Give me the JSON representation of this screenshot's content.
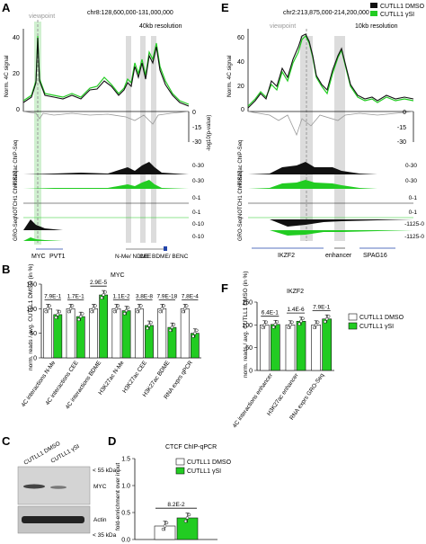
{
  "panels": {
    "A": {
      "letter": "A",
      "viewpoint": "viewpoint",
      "coords": "chr8:128,600,000-131,000,000",
      "resolution": "40kb resolution",
      "ylabel": "Norm. 4C signal",
      "y_ticks": [
        "40",
        "20",
        "0"
      ],
      "p_ticks": [
        "0",
        "-15",
        "-30"
      ],
      "pval_label": "-log10(p-value)",
      "tracks": [
        {
          "label": "H3K27ac ChIP-Seq",
          "range": "0-30"
        },
        {
          "label": "",
          "range": "0-30"
        },
        {
          "label": "NOTCH1 ChIP-Seq",
          "range": "0-1"
        },
        {
          "label": "",
          "range": "0-1"
        },
        {
          "label": "GRO-Seq",
          "range": "0-10"
        },
        {
          "label": "",
          "range": "0-10"
        }
      ],
      "genes": [
        "MYC",
        "PVT1"
      ],
      "annotations": [
        "N-Me/ NDME",
        "CEE",
        "BDME/ BENC"
      ]
    },
    "E": {
      "letter": "E",
      "viewpoint": "viewpoint",
      "coords": "chr2:213,875,000-214,200,000",
      "resolution": "10kb resolution",
      "ylabel": "Norm. 4C signal",
      "y_ticks": [
        "60",
        "40",
        "20",
        "0"
      ],
      "p_ticks": [
        "0",
        "-15",
        "-30"
      ],
      "pval_label": "-log10(p-value)",
      "tracks": [
        {
          "label": "H3K27ac ChIP-Seq",
          "range": "0-30"
        },
        {
          "label": "",
          "range": "0-30"
        },
        {
          "label": "NOTCH1 ChIP-Seq",
          "range": "0-1"
        },
        {
          "label": "",
          "range": "0-1"
        },
        {
          "label": "GRO-Seq",
          "range": "-1125-0"
        },
        {
          "label": "",
          "range": "-1125-0"
        }
      ],
      "genes": [
        "IKZF2",
        "enhancer",
        "SPAG16"
      ]
    },
    "B": {
      "letter": "B",
      "gene": "MYC",
      "ylabel": "norm. reads / avg. CUTLL1 DMSO (in %)"
    },
    "F": {
      "letter": "F",
      "gene": "IKZF2",
      "ylabel": "norm. reads / avg. CUTLL1 DMSO (in %)"
    },
    "C": {
      "letter": "C",
      "lanes": [
        "CUTLL1 DMSO",
        "CUTLL1 γSI"
      ],
      "markers": [
        "< 55 kDa",
        "< 35 kDa"
      ],
      "bands": [
        "MYC",
        "Actin"
      ]
    },
    "D": {
      "letter": "D",
      "title": "CTCF ChIP-qPCR",
      "ylabel": "fold-enrichment over input"
    }
  },
  "legend": {
    "dmso": "CUTLL1 DMSO",
    "gsi": "CUTLL1 γSI"
  },
  "colors": {
    "dmso": "#111111",
    "gsi": "#22cc22",
    "highlight": "#d9d9d9",
    "grey": "#9a9a9a"
  },
  "chart_data": [
    {
      "type": "bar",
      "panel": "B",
      "title": "MYC",
      "ylabel": "norm. reads / avg. CUTLL1 DMSO (in %)",
      "ylim": [
        0,
        150
      ],
      "yticks": [
        0,
        50,
        100,
        150
      ],
      "categories": [
        "4C interactions N-Me",
        "4C interactions CEE",
        "4C interactions BDME",
        "H3K27ac N-Me",
        "H3K27ac CEE",
        "H3K27ac BDME",
        "RNA exprs qPCR"
      ],
      "series": [
        {
          "name": "CUTLL1 DMSO",
          "values": [
            100,
            100,
            100,
            100,
            100,
            100,
            100
          ]
        },
        {
          "name": "CUTLL1 γSI",
          "values": [
            88,
            84,
            128,
            96,
            66,
            62,
            50
          ]
        }
      ],
      "pvalues": [
        "7.9E-1",
        "1.7E-1",
        "2.9E-5",
        "1.1E-2",
        "3.8E-8",
        "7.9E-18",
        "7.8E-4"
      ]
    },
    {
      "type": "bar",
      "panel": "F",
      "title": "IKZF2",
      "ylabel": "norm. reads / avg. CUTLL1 DMSO (in %)",
      "ylim": [
        0,
        150
      ],
      "yticks": [
        0,
        50,
        100,
        150
      ],
      "categories": [
        "4C interactions enhancer",
        "H3K27ac enhancer",
        "RNA exprs GRO-Seq"
      ],
      "series": [
        {
          "name": "CUTLL1 DMSO",
          "values": [
            100,
            100,
            100
          ]
        },
        {
          "name": "CUTLL1 γSI",
          "values": [
            101,
            108,
            113
          ]
        }
      ],
      "pvalues": [
        "6.4E-1",
        "1.4E-6",
        "7.9E-1"
      ]
    },
    {
      "type": "bar",
      "panel": "D",
      "title": "CTCF ChIP-qPCR",
      "ylabel": "fold-enrichment over input",
      "ylim": [
        0,
        1.5
      ],
      "yticks": [
        0.0,
        0.5,
        1.0,
        1.5
      ],
      "categories": [
        ""
      ],
      "series": [
        {
          "name": "CUTLL1 DMSO",
          "values": [
            0.25
          ]
        },
        {
          "name": "CUTLL1 γSI",
          "values": [
            0.4
          ]
        }
      ],
      "pvalues": [
        "8.2E-2"
      ]
    }
  ]
}
